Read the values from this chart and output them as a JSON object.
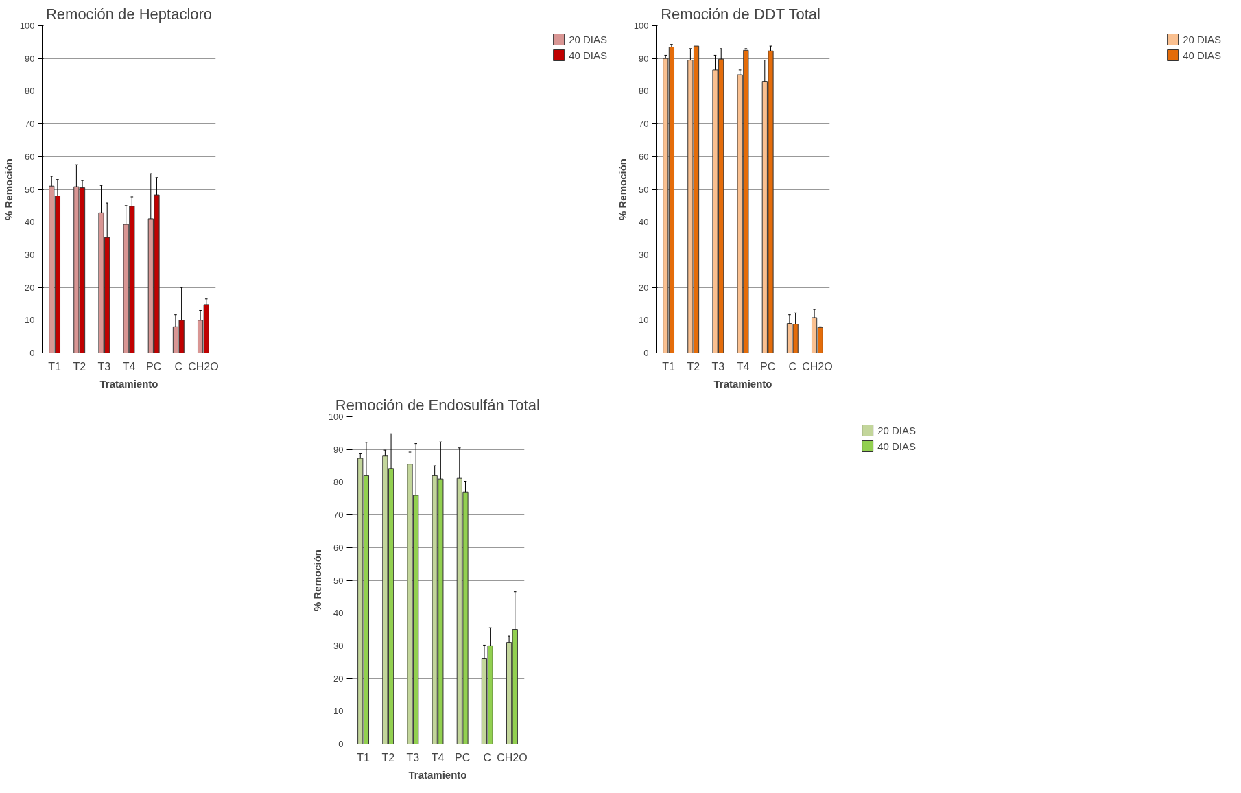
{
  "chart_data": [
    {
      "type": "bar",
      "title": "Remoción de Heptacloro",
      "xlabel": "Tratamiento",
      "ylabel": "% Remoción",
      "categories": [
        "T1",
        "T2",
        "T3",
        "T4",
        "PC",
        "C",
        "CH2O"
      ],
      "ylim": [
        0,
        100
      ],
      "yticks": [
        0,
        10,
        20,
        30,
        40,
        50,
        60,
        70,
        80,
        90,
        100
      ],
      "grid": "y",
      "legend": "right",
      "series": [
        {
          "name": "20 DIAS",
          "color": "#d99694",
          "values": [
            51,
            50.8,
            42.8,
            39.3,
            41,
            8,
            10
          ],
          "errors": [
            [
              51,
              54
            ],
            [
              50.8,
              57.5
            ],
            [
              42.8,
              51.2
            ],
            [
              39.3,
              45
            ],
            [
              41,
              54.8
            ],
            [
              8,
              11.7
            ],
            [
              10,
              13
            ]
          ]
        },
        {
          "name": "40 DIAS",
          "color": "#c00000",
          "values": [
            48,
            50.5,
            35.3,
            44.8,
            48.3,
            10,
            14.8
          ],
          "errors": [
            [
              48,
              53
            ],
            [
              50.5,
              52.7
            ],
            [
              35.3,
              45.8
            ],
            [
              44.8,
              47.7
            ],
            [
              48.3,
              53.6
            ],
            [
              10,
              20
            ],
            [
              14.8,
              16.5
            ]
          ]
        }
      ]
    },
    {
      "type": "bar",
      "title": "Remoción de DDT  Total",
      "xlabel": "Tratamiento",
      "ylabel": "% Remoción",
      "categories": [
        "T1",
        "T2",
        "T3",
        "T4",
        "PC",
        "C",
        "CH2O"
      ],
      "ylim": [
        0,
        100
      ],
      "yticks": [
        0,
        10,
        20,
        30,
        40,
        50,
        60,
        70,
        80,
        90,
        100
      ],
      "grid": "y",
      "legend": "right",
      "series": [
        {
          "name": "20 DIAS",
          "color": "#fac090",
          "values": [
            90,
            89.5,
            86.5,
            85,
            83,
            9,
            10.8
          ],
          "errors": [
            [
              90,
              91
            ],
            [
              89.5,
              93
            ],
            [
              86.5,
              91
            ],
            [
              85,
              86.5
            ],
            [
              83,
              89.5
            ],
            [
              9,
              11.7
            ],
            [
              10.8,
              13.3
            ]
          ]
        },
        {
          "name": "40 DIAS",
          "color": "#e46c0a",
          "values": [
            93.5,
            93.8,
            89.8,
            92.5,
            92.3,
            8.8,
            7.8
          ],
          "errors": [
            [
              93.5,
              94.3
            ],
            null,
            [
              89.8,
              93
            ],
            [
              92.5,
              93
            ],
            [
              92.3,
              93.8
            ],
            [
              8.8,
              12.2
            ],
            [
              7.8,
              8
            ]
          ]
        }
      ]
    },
    {
      "type": "bar",
      "title": "Remoción de Endosulfán Total",
      "xlabel": "Tratamiento",
      "ylabel": "% Remoción",
      "categories": [
        "T1",
        "T2",
        "T3",
        "T4",
        "PC",
        "C",
        "CH2O"
      ],
      "ylim": [
        0,
        100
      ],
      "yticks": [
        0,
        10,
        20,
        30,
        40,
        50,
        60,
        70,
        80,
        90,
        100
      ],
      "grid": "y",
      "legend": "right",
      "series": [
        {
          "name": "20 DIAS",
          "color": "#c3d69b",
          "values": [
            87.3,
            88,
            85.5,
            82,
            81.2,
            26.2,
            31
          ],
          "errors": [
            [
              87.3,
              88.7
            ],
            [
              88,
              89.8
            ],
            [
              85.5,
              89.2
            ],
            [
              82,
              85
            ],
            [
              81.2,
              90.5
            ],
            [
              26.2,
              30.2
            ],
            [
              31,
              33
            ]
          ]
        },
        {
          "name": "40 DIAS",
          "color": "#92d050",
          "values": [
            82,
            84.2,
            76,
            81,
            77,
            30,
            35
          ],
          "errors": [
            [
              82,
              92.2
            ],
            [
              84.2,
              94.8
            ],
            [
              76,
              91.8
            ],
            [
              81,
              92.3
            ],
            [
              77,
              80.3
            ],
            [
              30,
              35.5
            ],
            [
              35,
              46.5
            ]
          ]
        }
      ]
    }
  ]
}
